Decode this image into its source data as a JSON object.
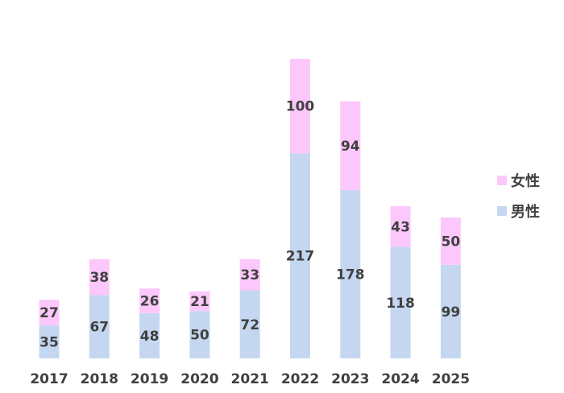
{
  "chart_data": {
    "type": "bar",
    "stacked": true,
    "title": "",
    "xlabel": "",
    "ylabel": "",
    "categories": [
      "2017",
      "2018",
      "2019",
      "2020",
      "2021",
      "2022",
      "2023",
      "2024",
      "2025"
    ],
    "series": [
      {
        "name": "男性",
        "color": "#c5d7f0",
        "values": [
          35,
          67,
          48,
          50,
          72,
          217,
          178,
          118,
          99
        ]
      },
      {
        "name": "女性",
        "color": "#fcc8fb",
        "values": [
          27,
          38,
          26,
          21,
          33,
          100,
          94,
          43,
          50
        ]
      }
    ],
    "ylim": [
      0,
      317
    ],
    "grid": false,
    "legend": {
      "position": "right",
      "order": [
        "女性",
        "男性"
      ]
    }
  }
}
